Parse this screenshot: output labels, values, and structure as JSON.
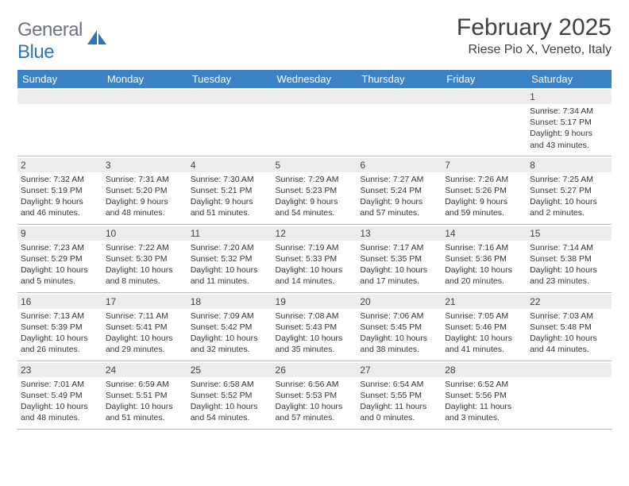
{
  "logo": {
    "word1": "General",
    "word2": "Blue"
  },
  "title": "February 2025",
  "location": "Riese Pio X, Veneto, Italy",
  "colors": {
    "header_bg": "#3b82c4",
    "header_text": "#ffffff",
    "daynum_bg": "#ececec",
    "border": "#b8b8b8",
    "text": "#333333",
    "logo_gray": "#6b7280",
    "logo_blue": "#2e75b6"
  },
  "weekdays": [
    "Sunday",
    "Monday",
    "Tuesday",
    "Wednesday",
    "Thursday",
    "Friday",
    "Saturday"
  ],
  "weeks": [
    [
      {
        "day": "",
        "lines": []
      },
      {
        "day": "",
        "lines": []
      },
      {
        "day": "",
        "lines": []
      },
      {
        "day": "",
        "lines": []
      },
      {
        "day": "",
        "lines": []
      },
      {
        "day": "",
        "lines": []
      },
      {
        "day": "1",
        "lines": [
          "Sunrise: 7:34 AM",
          "Sunset: 5:17 PM",
          "Daylight: 9 hours and 43 minutes."
        ]
      }
    ],
    [
      {
        "day": "2",
        "lines": [
          "Sunrise: 7:32 AM",
          "Sunset: 5:19 PM",
          "Daylight: 9 hours and 46 minutes."
        ]
      },
      {
        "day": "3",
        "lines": [
          "Sunrise: 7:31 AM",
          "Sunset: 5:20 PM",
          "Daylight: 9 hours and 48 minutes."
        ]
      },
      {
        "day": "4",
        "lines": [
          "Sunrise: 7:30 AM",
          "Sunset: 5:21 PM",
          "Daylight: 9 hours and 51 minutes."
        ]
      },
      {
        "day": "5",
        "lines": [
          "Sunrise: 7:29 AM",
          "Sunset: 5:23 PM",
          "Daylight: 9 hours and 54 minutes."
        ]
      },
      {
        "day": "6",
        "lines": [
          "Sunrise: 7:27 AM",
          "Sunset: 5:24 PM",
          "Daylight: 9 hours and 57 minutes."
        ]
      },
      {
        "day": "7",
        "lines": [
          "Sunrise: 7:26 AM",
          "Sunset: 5:26 PM",
          "Daylight: 9 hours and 59 minutes."
        ]
      },
      {
        "day": "8",
        "lines": [
          "Sunrise: 7:25 AM",
          "Sunset: 5:27 PM",
          "Daylight: 10 hours and 2 minutes."
        ]
      }
    ],
    [
      {
        "day": "9",
        "lines": [
          "Sunrise: 7:23 AM",
          "Sunset: 5:29 PM",
          "Daylight: 10 hours and 5 minutes."
        ]
      },
      {
        "day": "10",
        "lines": [
          "Sunrise: 7:22 AM",
          "Sunset: 5:30 PM",
          "Daylight: 10 hours and 8 minutes."
        ]
      },
      {
        "day": "11",
        "lines": [
          "Sunrise: 7:20 AM",
          "Sunset: 5:32 PM",
          "Daylight: 10 hours and 11 minutes."
        ]
      },
      {
        "day": "12",
        "lines": [
          "Sunrise: 7:19 AM",
          "Sunset: 5:33 PM",
          "Daylight: 10 hours and 14 minutes."
        ]
      },
      {
        "day": "13",
        "lines": [
          "Sunrise: 7:17 AM",
          "Sunset: 5:35 PM",
          "Daylight: 10 hours and 17 minutes."
        ]
      },
      {
        "day": "14",
        "lines": [
          "Sunrise: 7:16 AM",
          "Sunset: 5:36 PM",
          "Daylight: 10 hours and 20 minutes."
        ]
      },
      {
        "day": "15",
        "lines": [
          "Sunrise: 7:14 AM",
          "Sunset: 5:38 PM",
          "Daylight: 10 hours and 23 minutes."
        ]
      }
    ],
    [
      {
        "day": "16",
        "lines": [
          "Sunrise: 7:13 AM",
          "Sunset: 5:39 PM",
          "Daylight: 10 hours and 26 minutes."
        ]
      },
      {
        "day": "17",
        "lines": [
          "Sunrise: 7:11 AM",
          "Sunset: 5:41 PM",
          "Daylight: 10 hours and 29 minutes."
        ]
      },
      {
        "day": "18",
        "lines": [
          "Sunrise: 7:09 AM",
          "Sunset: 5:42 PM",
          "Daylight: 10 hours and 32 minutes."
        ]
      },
      {
        "day": "19",
        "lines": [
          "Sunrise: 7:08 AM",
          "Sunset: 5:43 PM",
          "Daylight: 10 hours and 35 minutes."
        ]
      },
      {
        "day": "20",
        "lines": [
          "Sunrise: 7:06 AM",
          "Sunset: 5:45 PM",
          "Daylight: 10 hours and 38 minutes."
        ]
      },
      {
        "day": "21",
        "lines": [
          "Sunrise: 7:05 AM",
          "Sunset: 5:46 PM",
          "Daylight: 10 hours and 41 minutes."
        ]
      },
      {
        "day": "22",
        "lines": [
          "Sunrise: 7:03 AM",
          "Sunset: 5:48 PM",
          "Daylight: 10 hours and 44 minutes."
        ]
      }
    ],
    [
      {
        "day": "23",
        "lines": [
          "Sunrise: 7:01 AM",
          "Sunset: 5:49 PM",
          "Daylight: 10 hours and 48 minutes."
        ]
      },
      {
        "day": "24",
        "lines": [
          "Sunrise: 6:59 AM",
          "Sunset: 5:51 PM",
          "Daylight: 10 hours and 51 minutes."
        ]
      },
      {
        "day": "25",
        "lines": [
          "Sunrise: 6:58 AM",
          "Sunset: 5:52 PM",
          "Daylight: 10 hours and 54 minutes."
        ]
      },
      {
        "day": "26",
        "lines": [
          "Sunrise: 6:56 AM",
          "Sunset: 5:53 PM",
          "Daylight: 10 hours and 57 minutes."
        ]
      },
      {
        "day": "27",
        "lines": [
          "Sunrise: 6:54 AM",
          "Sunset: 5:55 PM",
          "Daylight: 11 hours and 0 minutes."
        ]
      },
      {
        "day": "28",
        "lines": [
          "Sunrise: 6:52 AM",
          "Sunset: 5:56 PM",
          "Daylight: 11 hours and 3 minutes."
        ]
      },
      {
        "day": "",
        "lines": []
      }
    ]
  ]
}
